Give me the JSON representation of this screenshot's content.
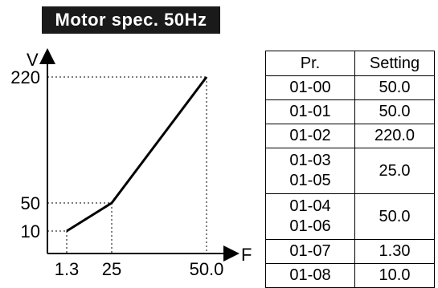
{
  "title": "Motor spec. 50Hz",
  "graph": {
    "y_axis_label": "V",
    "x_axis_label": "F",
    "y_ticks": [
      {
        "label": "220",
        "value": 220
      },
      {
        "label": "50",
        "value": 50
      },
      {
        "label": "10",
        "value": 10
      }
    ],
    "x_ticks": [
      {
        "label": "1.3",
        "value": 1.3
      },
      {
        "label": "25",
        "value": 25
      },
      {
        "label": "50.0",
        "value": 50.0
      }
    ],
    "curve_points": [
      {
        "f": 1.3,
        "v": 10
      },
      {
        "f": 25,
        "v": 50
      },
      {
        "f": 50.0,
        "v": 220
      }
    ]
  },
  "table": {
    "headers": {
      "pr": "Pr.",
      "setting": "Setting"
    },
    "rows": [
      {
        "pr": [
          "01-00"
        ],
        "setting": "50.0"
      },
      {
        "pr": [
          "01-01"
        ],
        "setting": "50.0"
      },
      {
        "pr": [
          "01-02"
        ],
        "setting": "220.0"
      },
      {
        "pr": [
          "01-03",
          "01-05"
        ],
        "setting": "25.0"
      },
      {
        "pr": [
          "01-04",
          "01-06"
        ],
        "setting": "50.0"
      },
      {
        "pr": [
          "01-07"
        ],
        "setting": "1.30"
      },
      {
        "pr": [
          "01-08"
        ],
        "setting": "10.0"
      }
    ]
  }
}
